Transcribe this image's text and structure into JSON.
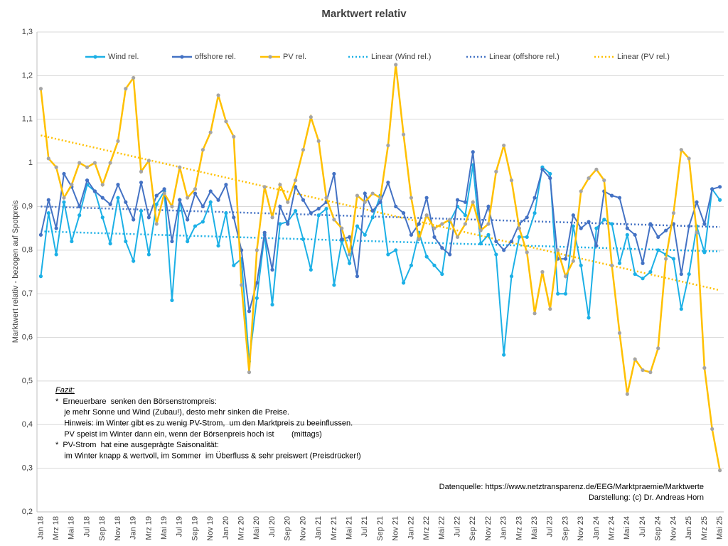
{
  "chart_data": {
    "type": "line",
    "title": "Marktwert relativ",
    "y_label": "Marktwert relativ - bezogen auf Spotpreis",
    "categories": [
      "Jan 18",
      null,
      "Mrz 18",
      null,
      "Mai 18",
      null,
      "Jul 18",
      null,
      "Sep 18",
      null,
      "Nov 18",
      null,
      "Jan 19",
      null,
      "Mrz 19",
      null,
      "Mai 19",
      null,
      "Jul 19",
      null,
      "Sep 19",
      null,
      "Nov 19",
      null,
      "Jan 20",
      null,
      "Mrz 20",
      null,
      "Mai 20",
      null,
      "Jul 20",
      null,
      "Sep 20",
      null,
      "Nov 20",
      null,
      "Jan 21",
      null,
      "Mrz 21",
      null,
      "Mai 21",
      null,
      "Jul 21",
      null,
      "Sep 21",
      null,
      "Nov 21",
      null,
      "Jan 22",
      null,
      "Mrz 22",
      null,
      "Mai 22",
      null,
      "Jul 22",
      null,
      "Sep 22",
      null,
      "Nov 22",
      null,
      "Jan 23",
      null,
      "Mrz 23",
      null,
      "Mai 23",
      null,
      "Jul 23",
      null,
      "Sep 23",
      null,
      "Nov 23",
      null,
      "Jan 24",
      null,
      "Mrz 24",
      null,
      "Mai 24",
      null,
      "Jul 24",
      null,
      "Sep 24",
      null,
      "Nov 24",
      null,
      "Jan 25",
      null,
      "Mrz 25",
      null,
      "Mai 25"
    ],
    "series": [
      {
        "name": "Wind rel.",
        "color": "#1cb0e6",
        "marker_color": "#1cb0e6",
        "values": [
          0.74,
          0.885,
          0.79,
          0.91,
          0.82,
          0.88,
          0.95,
          0.935,
          0.875,
          0.815,
          0.92,
          0.82,
          0.775,
          0.89,
          0.79,
          0.905,
          0.935,
          0.685,
          0.915,
          0.82,
          0.855,
          0.865,
          0.91,
          0.81,
          0.885,
          0.765,
          0.78,
          0.545,
          0.69,
          0.835,
          0.675,
          0.86,
          0.865,
          0.89,
          0.825,
          0.755,
          0.88,
          0.895,
          0.72,
          0.82,
          0.77,
          0.855,
          0.835,
          0.875,
          0.925,
          0.79,
          0.8,
          0.725,
          0.765,
          0.84,
          0.785,
          0.765,
          0.745,
          0.865,
          0.9,
          0.88,
          0.995,
          0.815,
          0.835,
          0.79,
          0.56,
          0.74,
          0.83,
          0.83,
          0.885,
          0.99,
          0.975,
          0.7,
          0.7,
          0.855,
          0.765,
          0.645,
          0.85,
          0.87,
          0.86,
          0.77,
          0.835,
          0.745,
          0.735,
          0.75,
          0.8,
          0.79,
          0.78,
          0.665,
          0.745,
          0.855,
          0.795,
          0.94,
          0.915
        ]
      },
      {
        "name": "offshore rel.",
        "color": "#4472c4",
        "marker_color": "#4472c4",
        "values": [
          0.835,
          0.915,
          0.85,
          0.975,
          0.945,
          0.9,
          0.96,
          0.935,
          0.92,
          0.905,
          0.95,
          0.91,
          0.87,
          0.955,
          0.875,
          0.925,
          0.94,
          0.82,
          0.915,
          0.87,
          0.93,
          0.9,
          0.935,
          0.915,
          0.95,
          0.875,
          0.8,
          0.66,
          0.725,
          0.84,
          0.755,
          0.9,
          0.86,
          0.945,
          0.915,
          0.885,
          0.895,
          0.91,
          0.975,
          0.825,
          0.83,
          0.74,
          0.93,
          0.89,
          0.91,
          0.955,
          0.9,
          0.885,
          0.835,
          0.86,
          0.92,
          0.83,
          0.805,
          0.79,
          0.915,
          0.91,
          1.025,
          0.85,
          0.9,
          0.82,
          0.8,
          0.82,
          0.86,
          0.875,
          0.92,
          0.985,
          0.965,
          0.78,
          0.78,
          0.88,
          0.85,
          0.865,
          0.81,
          0.935,
          0.925,
          0.92,
          0.85,
          0.835,
          0.77,
          0.86,
          0.83,
          0.845,
          0.86,
          0.745,
          0.855,
          0.91,
          0.86,
          0.94,
          0.945
        ]
      },
      {
        "name": "PV rel.",
        "color": "#ffc000",
        "marker_color": "#a5a5a5",
        "values": [
          1.17,
          1.01,
          0.99,
          0.92,
          0.95,
          1.0,
          0.99,
          1.0,
          0.95,
          1.0,
          1.05,
          1.17,
          1.195,
          0.98,
          1.005,
          0.86,
          0.93,
          0.9,
          0.99,
          0.92,
          0.94,
          1.03,
          1.07,
          1.155,
          1.095,
          1.06,
          0.72,
          0.52,
          0.8,
          0.945,
          0.875,
          0.95,
          0.91,
          0.96,
          1.03,
          1.105,
          1.05,
          0.92,
          0.87,
          0.85,
          0.79,
          0.925,
          0.91,
          0.93,
          0.92,
          1.04,
          1.225,
          1.065,
          0.92,
          0.825,
          0.88,
          0.85,
          0.86,
          0.87,
          0.83,
          0.86,
          0.91,
          0.845,
          0.86,
          0.98,
          1.04,
          0.96,
          0.85,
          0.795,
          0.655,
          0.75,
          0.665,
          0.8,
          0.74,
          0.775,
          0.935,
          0.965,
          0.985,
          0.96,
          0.765,
          0.61,
          0.47,
          0.55,
          0.525,
          0.52,
          0.575,
          0.78,
          0.885,
          1.03,
          1.01,
          0.84,
          0.53,
          0.39,
          0.295
        ]
      }
    ],
    "trendlines": [
      {
        "name": "Linear (Wind rel.)",
        "color": "#1cb0e6",
        "start": 0.843,
        "end": 0.797
      },
      {
        "name": "Linear (offshore rel.)",
        "color": "#4472c4",
        "start": 0.9,
        "end": 0.853
      },
      {
        "name": "Linear (PV rel.)",
        "color": "#ffc000",
        "start": 1.063,
        "end": 0.708
      }
    ],
    "ylim": [
      0.2,
      1.3
    ],
    "yticks": [
      {
        "value": 0.2,
        "label": "0,2"
      },
      {
        "value": 0.3,
        "label": "0,3"
      },
      {
        "value": 0.4,
        "label": "0,4"
      },
      {
        "value": 0.5,
        "label": "0,5"
      },
      {
        "value": 0.6,
        "label": "0,6"
      },
      {
        "value": 0.7,
        "label": "0,7"
      },
      {
        "value": 0.8,
        "label": "0,8"
      },
      {
        "value": 0.9,
        "label": "0,9"
      },
      1,
      {
        "value": 1.1,
        "label": "1,1"
      },
      {
        "value": 1.2,
        "label": "1,2"
      },
      {
        "value": 1.3,
        "label": "1,3"
      }
    ],
    "grid": true,
    "legend": "top",
    "annotation": {
      "heading": "Fazit:",
      "lines": [
        "*  Erneuerbare  senken den Börsenstrompreis:",
        "    je mehr Sonne und Wind (Zubau!), desto mehr sinken die Preise.",
        "    Hinweis: im Winter gibt es zu wenig PV-Strom,  um den Marktpreis zu beeinflussen.",
        "    PV speist im Winter dann ein, wenn der Börsenpreis hoch ist        (mittags)",
        "*  PV-Strom  hat eine ausgeprägte Saisonalität:",
        "    im Winter knapp & wertvoll, im Sommer  im Überfluss & sehr preiswert (Preisdrücker!)"
      ]
    },
    "source": [
      "Datenquelle: https://www.netztransparenz.de/EEG/Marktpraemie/Marktwerte",
      "Darstellung: (c) Dr. Andreas Horn"
    ]
  }
}
